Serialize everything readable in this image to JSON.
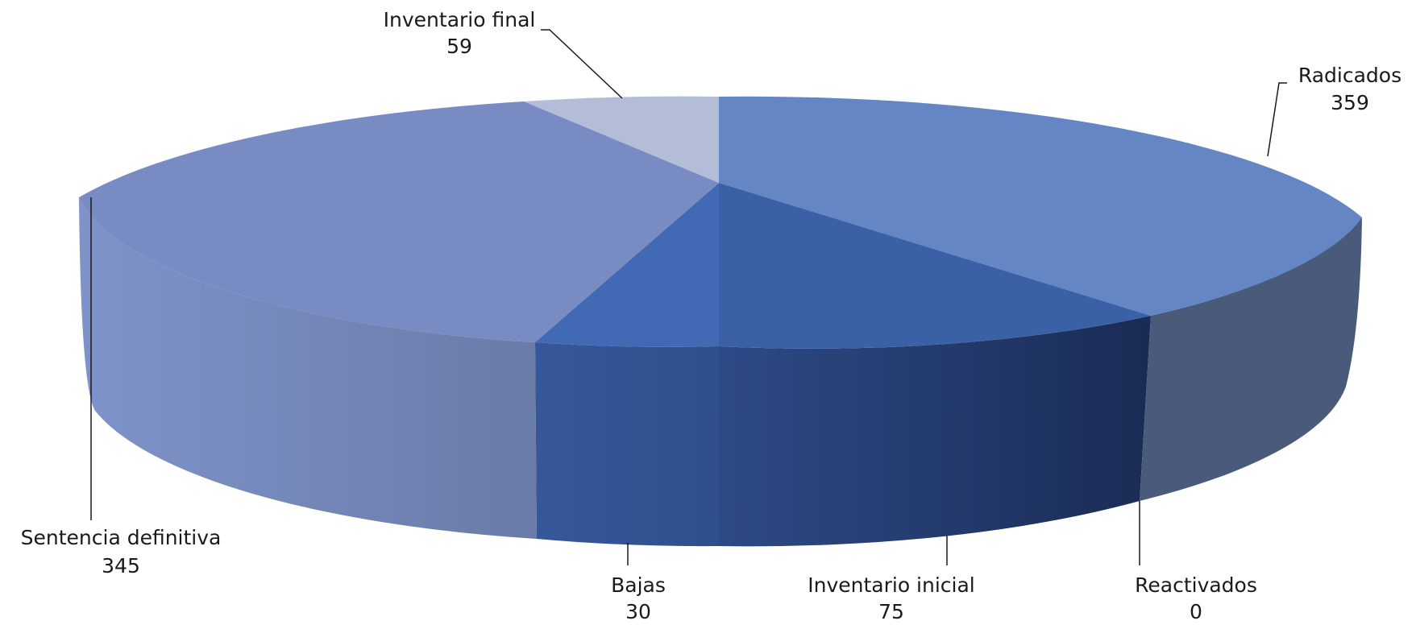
{
  "chart_data": {
    "type": "pie",
    "title": "",
    "categories": [
      "Radicados",
      "Inventario inicial",
      "Reactivados",
      "Bajas",
      "Sentencia definitiva",
      "Inventario final"
    ],
    "values": [
      359,
      75,
      0,
      30,
      345,
      59
    ],
    "colors": [
      "#6586C4",
      "#3A60A6",
      "#4A5A7A",
      "#4269B3",
      "#788BC2",
      "#B3BDD7"
    ],
    "labels": [
      {
        "name": "Radicados",
        "value": "359"
      },
      {
        "name": "Inventario inicial",
        "value": "75"
      },
      {
        "name": "Reactivados",
        "value": "0"
      },
      {
        "name": "Bajas",
        "value": "30"
      },
      {
        "name": "Sentencia definitiva",
        "value": "345"
      },
      {
        "name": "Inventario final",
        "value": "59"
      }
    ],
    "legend": "none",
    "style": "3d-pie"
  }
}
